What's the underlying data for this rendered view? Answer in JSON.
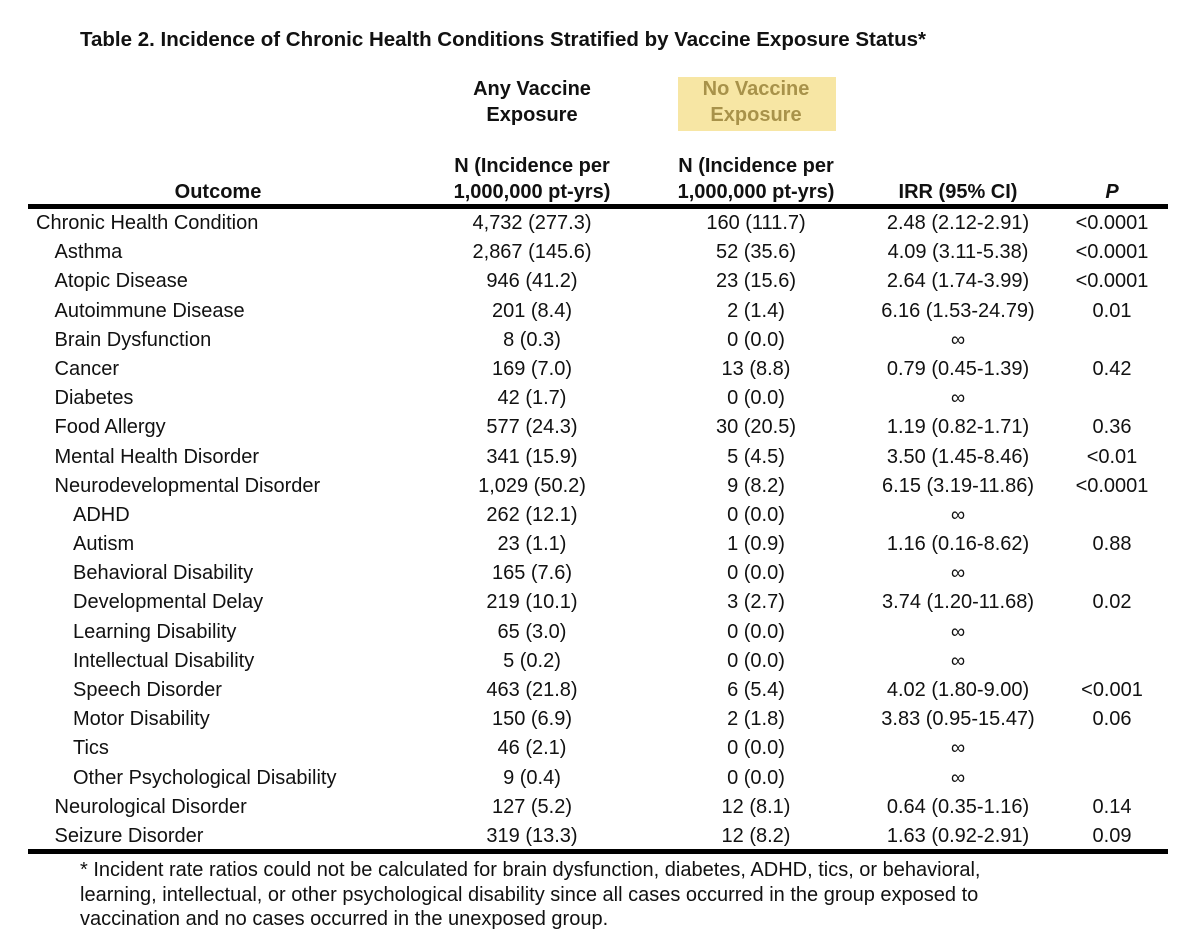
{
  "title": "Table 2. Incidence of Chronic Health Conditions Stratified by Vaccine Exposure Status*",
  "groups": [
    [
      "Any Vaccine",
      "Exposure"
    ],
    [
      "No Vaccine",
      "Exposure"
    ]
  ],
  "header": {
    "outcome": "Outcome",
    "columns": [
      [
        "N (Incidence per",
        "1,000,000 pt-yrs)"
      ],
      [
        "N (Incidence per",
        "1,000,000 pt-yrs)"
      ]
    ],
    "irr": "IRR (95% CI)",
    "p": "P"
  },
  "table": {
    "rows": [
      {
        "cells": [
          "Chronic Health Condition",
          "4,732 (277.3)",
          "160 (111.7)",
          "2.48 (2.12-2.91)",
          "<0.0001"
        ],
        "sub": [
          {
            "cells": [
              "Asthma",
              "2,867 (145.6)",
              "52 (35.6)",
              "4.09 (3.11-5.38)",
              "<0.0001"
            ]
          },
          {
            "cells": [
              "Atopic Disease",
              "946 (41.2)",
              "23 (15.6)",
              "2.64 (1.74-3.99)",
              "<0.0001"
            ]
          },
          {
            "cells": [
              "Autoimmune Disease",
              "201 (8.4)",
              "2 (1.4)",
              "6.16 (1.53-24.79)",
              "0.01"
            ]
          },
          {
            "cells": [
              "Brain Dysfunction",
              "8 (0.3)",
              "0 (0.0)",
              "∞"
            ]
          },
          {
            "cells": [
              "Cancer",
              "169 (7.0)",
              "13 (8.8)",
              "0.79 (0.45-1.39)",
              "0.42"
            ]
          },
          {
            "cells": [
              "Diabetes",
              "42 (1.7)",
              "0 (0.0)",
              "∞"
            ]
          },
          {
            "cells": [
              "Food Allergy",
              "577 (24.3)",
              "30 (20.5)",
              "1.19 (0.82-1.71)",
              "0.36"
            ]
          },
          {
            "cells": [
              "Mental Health Disorder",
              "341 (15.9)",
              "5 (4.5)",
              "3.50 (1.45-8.46)",
              "<0.01"
            ]
          },
          {
            "cells": [
              "Neurodevelopmental Disorder",
              "1,029 (50.2)",
              "9 (8.2)",
              "6.15 (3.19-11.86)",
              "<0.0001"
            ],
            "sub": [
              {
                "cells": [
                  "ADHD",
                  "262 (12.1)",
                  "0 (0.0)",
                  "∞"
                ]
              },
              {
                "cells": [
                  "Autism",
                  "23 (1.1)",
                  "1 (0.9)",
                  "1.16 (0.16-8.62)",
                  "0.88"
                ]
              },
              {
                "cells": [
                  "Behavioral Disability",
                  "165 (7.6)",
                  "0 (0.0)",
                  "∞"
                ]
              },
              {
                "cells": [
                  "Developmental Delay",
                  "219 (10.1)",
                  "3 (2.7)",
                  "3.74 (1.20-11.68)",
                  "0.02"
                ]
              },
              {
                "cells": [
                  "Learning Disability",
                  "65 (3.0)",
                  "0 (0.0)",
                  "∞"
                ]
              },
              {
                "cells": [
                  "Intellectual Disability",
                  "5 (0.2)",
                  "0 (0.0)",
                  "∞"
                ]
              },
              {
                "cells": [
                  "Speech Disorder",
                  "463 (21.8)",
                  "6 (5.4)",
                  "4.02 (1.80-9.00)",
                  "<0.001"
                ]
              },
              {
                "cells": [
                  "Motor Disability",
                  "150 (6.9)",
                  "2 (1.8)",
                  "3.83 (0.95-15.47)",
                  "0.06"
                ]
              },
              {
                "cells": [
                  "Tics",
                  "46 (2.1)",
                  "0 (0.0)",
                  "∞"
                ]
              },
              {
                "cells": [
                  "Other Psychological Disability",
                  "9 (0.4)",
                  "0 (0.0)",
                  "∞"
                ]
              }
            ]
          },
          {
            "cells": [
              "Neurological Disorder",
              "127 (5.2)",
              "12 (8.1)",
              "0.64 (0.35-1.16)",
              "0.14"
            ]
          },
          {
            "cells": [
              "Seizure Disorder",
              "319 (13.3)",
              "12 (8.2)",
              "1.63 (0.92-2.91)",
              "0.09"
            ]
          }
        ]
      }
    ]
  },
  "footnote": [
    "* Incident rate ratios could not be calculated for brain dysfunction, diabetes, ADHD, tics, or behavioral,",
    "learning, intellectual, or other psychological disability since all cases occurred in the group exposed to",
    "vaccination and no cases occurred in the unexposed group."
  ]
}
